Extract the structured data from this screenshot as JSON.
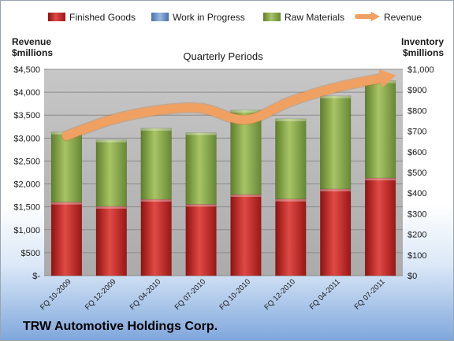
{
  "company_name": "TRW Automotive Holdings Corp.",
  "colors": {
    "finished_goods": "#c8201e",
    "work_in_progress": "#6f93c8",
    "raw_materials": "#8fae4a",
    "revenue": "#f0a060"
  },
  "chart_data": {
    "type": "bar",
    "title": "Quarterly Periods",
    "ylabel_left": "Revenue\n$millions",
    "ylabel_right": "Inventory\n$millions",
    "categories": [
      "FQ 10-2009",
      "FQ 12-2009",
      "FQ 04-2010",
      "FQ 07-2010",
      "FQ 10-2010",
      "FQ 12-2010",
      "FQ 04-2011",
      "FQ 07-2011"
    ],
    "ylim_left": [
      0,
      4500
    ],
    "yticks_left": [
      "$-",
      "$500",
      "$1,000",
      "$1,500",
      "$2,000",
      "$2,500",
      "$3,000",
      "$3,500",
      "$4,000",
      "$4,500"
    ],
    "ylim_right": [
      0,
      1000
    ],
    "yticks_right": [
      "$0",
      "$100",
      "$200",
      "$300",
      "$400",
      "$500",
      "$600",
      "$700",
      "$800",
      "$900",
      "$1,000"
    ],
    "grid": true,
    "legend_position": "top",
    "series": [
      {
        "name": "Finished Goods",
        "axis": "right",
        "kind": "stacked-bar",
        "values": [
          356,
          336,
          370,
          346,
          393,
          371,
          420,
          473
        ]
      },
      {
        "name": "Work in Progress",
        "axis": "right",
        "kind": "stacked-bar",
        "values": [
          0,
          0,
          0,
          0,
          0,
          0,
          0,
          0
        ]
      },
      {
        "name": "Raw Materials",
        "axis": "right",
        "kind": "stacked-bar",
        "values": [
          340,
          322,
          344,
          347,
          409,
          389,
          451,
          472
        ]
      },
      {
        "name": "Revenue",
        "axis": "left",
        "kind": "line",
        "values": [
          3050,
          3400,
          3600,
          3650,
          3400,
          3800,
          4100,
          4300
        ]
      }
    ]
  }
}
